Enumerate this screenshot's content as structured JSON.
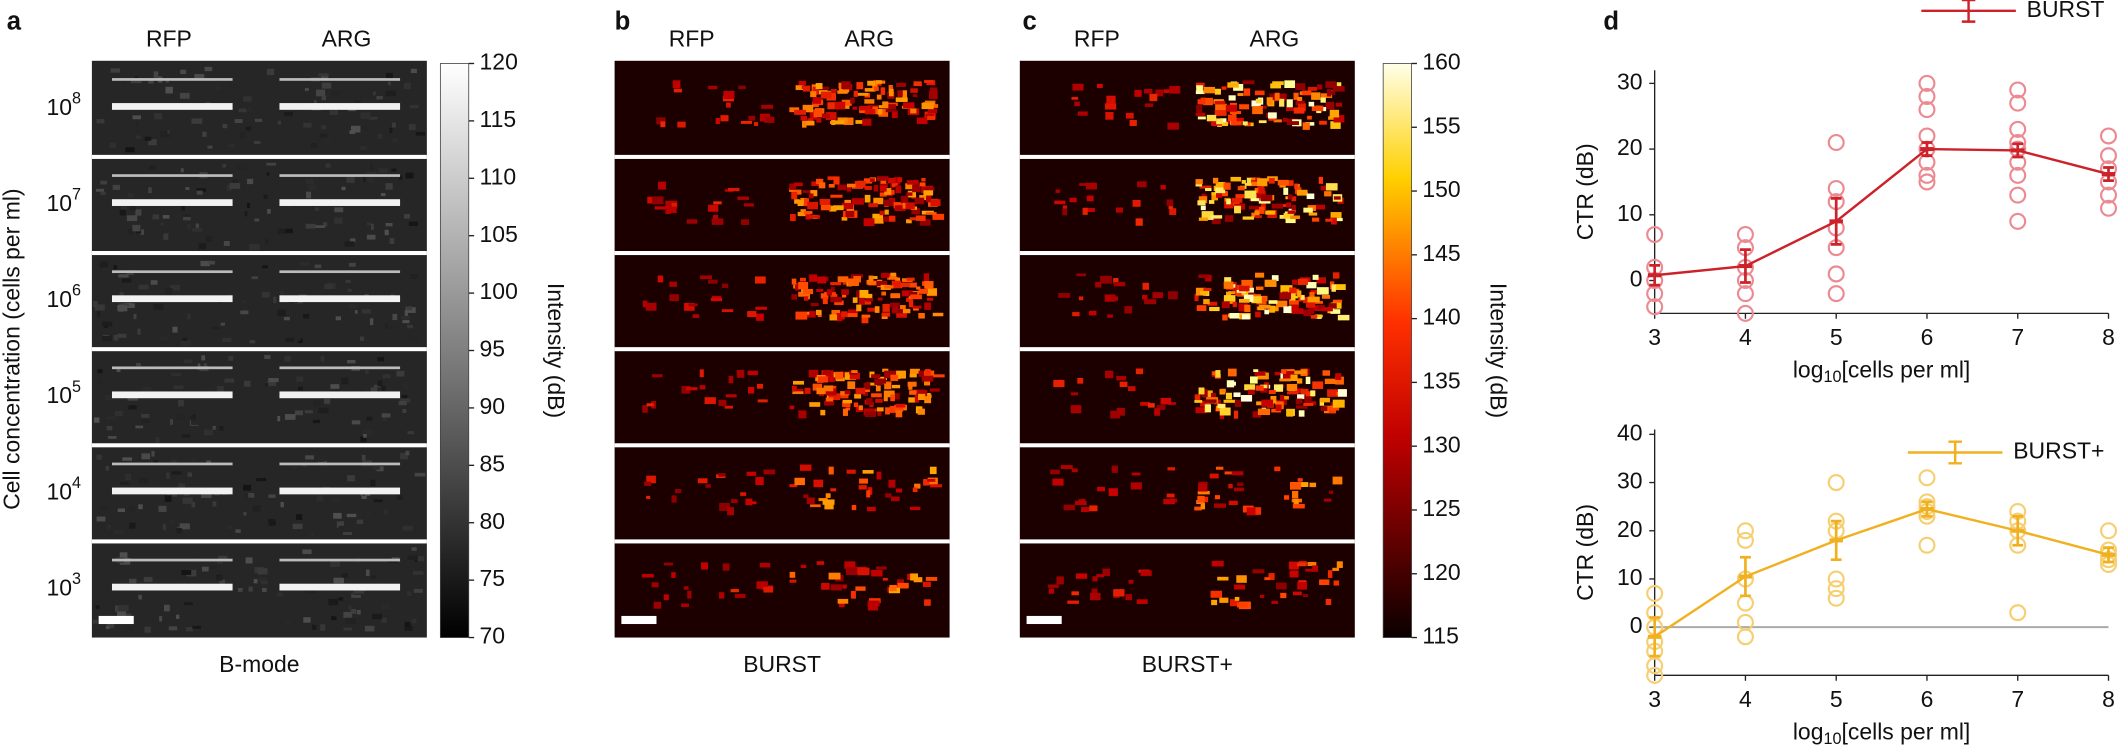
{
  "chart_data": [
    {
      "type": "heatmap",
      "panel_label": "a",
      "columns": [
        "RFP",
        "ARG"
      ],
      "rows": [
        {
          "base": "10",
          "exp": "8"
        },
        {
          "base": "10",
          "exp": "7"
        },
        {
          "base": "10",
          "exp": "6"
        },
        {
          "base": "10",
          "exp": "5"
        },
        {
          "base": "10",
          "exp": "4"
        },
        {
          "base": "10",
          "exp": "3"
        }
      ],
      "y_label": "Cell concentration (cells per ml)",
      "caption": "B-mode",
      "colormap": "gray",
      "colorbar": {
        "label": "Intensity (dB)",
        "lim": [
          70,
          120
        ],
        "ticks": [
          70,
          75,
          80,
          85,
          90,
          95,
          100,
          105,
          110,
          115,
          120
        ]
      }
    },
    {
      "type": "heatmap",
      "panel_label": "b",
      "columns": [
        "RFP",
        "ARG"
      ],
      "caption": "BURST",
      "colormap": "hot"
    },
    {
      "type": "heatmap",
      "panel_label": "c",
      "columns": [
        "RFP",
        "ARG"
      ],
      "caption": "BURST+",
      "colormap": "hot",
      "colorbar": {
        "label": "Intensity (dB)",
        "lim": [
          115,
          160
        ],
        "ticks": [
          115,
          120,
          125,
          130,
          135,
          140,
          145,
          150,
          155,
          160
        ]
      }
    },
    {
      "type": "line",
      "panel_label": "d",
      "x": [
        3,
        4,
        5,
        6,
        7,
        8
      ],
      "xlim": [
        3,
        8
      ],
      "xticks": [
        3,
        4,
        5,
        6,
        7,
        8
      ],
      "ylim": [
        -5,
        32
      ],
      "yticks": [
        0,
        10,
        20,
        30
      ],
      "y_label": "CTR (dB)",
      "x_label": {
        "pre": "log",
        "sub": "10",
        "post": "[cells per ml]"
      },
      "legend": "top right",
      "zero_line": false,
      "series": [
        {
          "name": "BURST",
          "color": "#cc2229",
          "point_color": "#ec8a92",
          "values": [
            0.8,
            2.2,
            9,
            20,
            19.8,
            16.2
          ],
          "errors": [
            1.5,
            2.5,
            3.5,
            1,
            1,
            1
          ],
          "points": [
            [
              7,
              2,
              0,
              -2,
              -4
            ],
            [
              7,
              5,
              2,
              0,
              -2,
              -5
            ],
            [
              21,
              14,
              12,
              8,
              5,
              1,
              -2
            ],
            [
              30,
              28,
              26,
              22,
              20,
              18,
              16,
              15
            ],
            [
              29,
              27,
              23,
              21,
              20,
              18,
              16,
              13,
              9
            ],
            [
              22,
              19,
              17,
              15,
              13,
              11
            ]
          ]
        }
      ]
    },
    {
      "type": "line",
      "x": [
        3,
        4,
        5,
        6,
        7,
        8
      ],
      "xlim": [
        3,
        8
      ],
      "xticks": [
        3,
        4,
        5,
        6,
        7,
        8
      ],
      "ylim": [
        -10,
        41
      ],
      "yticks": [
        0,
        10,
        20,
        30,
        40
      ],
      "y_label": "CTR (dB)",
      "x_label": {
        "pre": "log",
        "sub": "10",
        "post": "[cells per ml]"
      },
      "legend": "top right",
      "zero_line": true,
      "series": [
        {
          "name": "BURST+",
          "color": "#f0b020",
          "point_color": "#f6cf72",
          "values": [
            -2,
            10.5,
            18,
            24.5,
            20,
            15
          ],
          "errors": [
            4,
            4,
            4,
            1.5,
            3,
            1.5
          ],
          "points": [
            [
              7,
              3,
              0,
              -3,
              -5,
              -8,
              -10
            ],
            [
              20,
              18,
              10,
              5,
              1,
              -2
            ],
            [
              30,
              22,
              20,
              10,
              8,
              6
            ],
            [
              31,
              26,
              25,
              24,
              23,
              17
            ],
            [
              24,
              22,
              20,
              17,
              3
            ],
            [
              20,
              16,
              15,
              14,
              13
            ]
          ]
        }
      ]
    }
  ]
}
